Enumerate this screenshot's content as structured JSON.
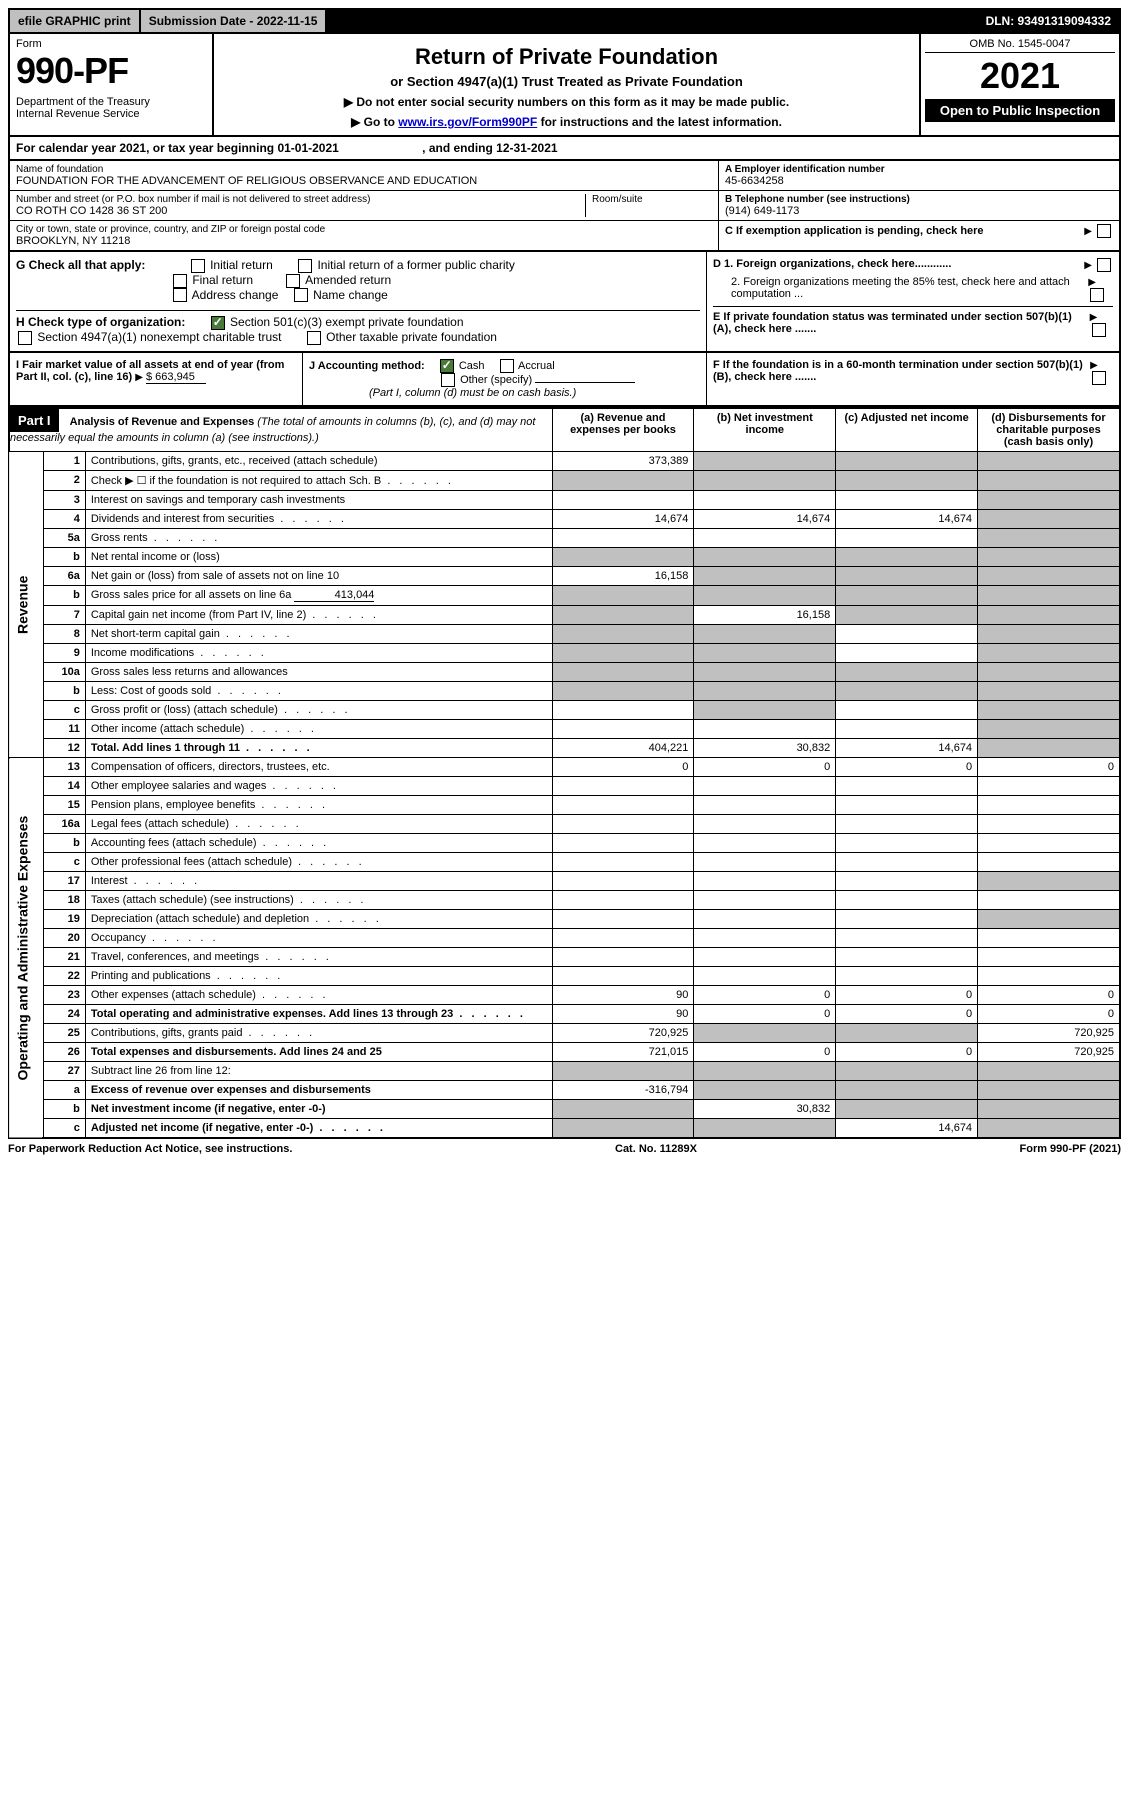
{
  "topbar": {
    "efile": "efile GRAPHIC print",
    "submission": "Submission Date - 2022-11-15",
    "dln": "DLN: 93491319094332"
  },
  "header": {
    "form_label": "Form",
    "form_number": "990-PF",
    "dept": "Department of the Treasury\nInternal Revenue Service",
    "title": "Return of Private Foundation",
    "subtitle": "or Section 4947(a)(1) Trust Treated as Private Foundation",
    "note1": "▶ Do not enter social security numbers on this form as it may be made public.",
    "note2_pre": "▶ Go to ",
    "note2_link": "www.irs.gov/Form990PF",
    "note2_post": " for instructions and the latest information.",
    "omb": "OMB No. 1545-0047",
    "year": "2021",
    "open": "Open to Public Inspection"
  },
  "calendar": "For calendar year 2021, or tax year beginning 01-01-2021                         , and ending 12-31-2021",
  "info": {
    "name_label": "Name of foundation",
    "name": "FOUNDATION FOR THE ADVANCEMENT OF RELIGIOUS OBSERVANCE AND EDUCATION",
    "street_label": "Number and street (or P.O. box number if mail is not delivered to street address)",
    "street": "CO ROTH CO 1428 36 ST 200",
    "room_label": "Room/suite",
    "city_label": "City or town, state or province, country, and ZIP or foreign postal code",
    "city": "BROOKLYN, NY  11218",
    "ein_label": "A Employer identification number",
    "ein": "45-6634258",
    "phone_label": "B Telephone number (see instructions)",
    "phone": "(914) 649-1173",
    "c_label": "C If exemption application is pending, check here"
  },
  "checks": {
    "g_label": "G Check all that apply:",
    "g_opts": [
      "Initial return",
      "Initial return of a former public charity",
      "Final return",
      "Amended return",
      "Address change",
      "Name change"
    ],
    "h_label": "H Check type of organization:",
    "h_501c3": "Section 501(c)(3) exempt private foundation",
    "h_4947": "Section 4947(a)(1) nonexempt charitable trust",
    "h_other": "Other taxable private foundation",
    "i_label": "I Fair market value of all assets at end of year (from Part II, col. (c), line 16)",
    "i_value": "$  663,945",
    "j_label": "J Accounting method:",
    "j_cash": "Cash",
    "j_accrual": "Accrual",
    "j_other": "Other (specify)",
    "j_note": "(Part I, column (d) must be on cash basis.)",
    "d1": "D 1. Foreign organizations, check here............",
    "d2": "2. Foreign organizations meeting the 85% test, check here and attach computation ...",
    "e_label": "E  If private foundation status was terminated under section 507(b)(1)(A), check here .......",
    "f_label": "F  If the foundation is in a 60-month termination under section 507(b)(1)(B), check here .......",
    "arrow": "▶"
  },
  "part1": {
    "label": "Part I",
    "title": "Analysis of Revenue and Expenses",
    "title_note": "(The total of amounts in columns (b), (c), and (d) may not necessarily equal the amounts in column (a) (see instructions).)",
    "col_a": "(a)   Revenue and expenses per books",
    "col_b": "(b)   Net investment income",
    "col_c": "(c)   Adjusted net income",
    "col_d": "(d)   Disbursements for charitable purposes (cash basis only)",
    "side_revenue": "Revenue",
    "side_expenses": "Operating and Administrative Expenses"
  },
  "rows": [
    {
      "n": "1",
      "desc": "Contributions, gifts, grants, etc., received (attach schedule)",
      "a": "373,389",
      "b": "",
      "c": "",
      "d": "",
      "b_shade": true,
      "c_shade": true,
      "d_shade": true
    },
    {
      "n": "2",
      "desc": "Check ▶ ☐ if the foundation is not required to attach Sch. B",
      "dots": true,
      "a": "",
      "b": "",
      "c": "",
      "d": "",
      "a_shade": true,
      "b_shade": true,
      "c_shade": true,
      "d_shade": true
    },
    {
      "n": "3",
      "desc": "Interest on savings and temporary cash investments",
      "a": "",
      "b": "",
      "c": "",
      "d": "",
      "d_shade": true
    },
    {
      "n": "4",
      "desc": "Dividends and interest from securities",
      "dots": true,
      "a": "14,674",
      "b": "14,674",
      "c": "14,674",
      "d": "",
      "d_shade": true
    },
    {
      "n": "5a",
      "desc": "Gross rents",
      "dots": true,
      "a": "",
      "b": "",
      "c": "",
      "d": "",
      "d_shade": true
    },
    {
      "n": "b",
      "desc": "Net rental income or (loss)",
      "inset": true,
      "a": "",
      "b": "",
      "c": "",
      "d": "",
      "a_shade": true,
      "b_shade": true,
      "c_shade": true,
      "d_shade": true
    },
    {
      "n": "6a",
      "desc": "Net gain or (loss) from sale of assets not on line 10",
      "a": "16,158",
      "b": "",
      "c": "",
      "d": "",
      "b_shade": true,
      "c_shade": true,
      "d_shade": true
    },
    {
      "n": "b",
      "desc": "Gross sales price for all assets on line 6a",
      "inset_val": "413,044",
      "a": "",
      "b": "",
      "c": "",
      "d": "",
      "a_shade": true,
      "b_shade": true,
      "c_shade": true,
      "d_shade": true
    },
    {
      "n": "7",
      "desc": "Capital gain net income (from Part IV, line 2)",
      "dots": true,
      "a": "",
      "b": "16,158",
      "c": "",
      "d": "",
      "a_shade": true,
      "c_shade": true,
      "d_shade": true
    },
    {
      "n": "8",
      "desc": "Net short-term capital gain",
      "dots": true,
      "a": "",
      "b": "",
      "c": "",
      "d": "",
      "a_shade": true,
      "b_shade": true,
      "d_shade": true
    },
    {
      "n": "9",
      "desc": "Income modifications",
      "dots": true,
      "a": "",
      "b": "",
      "c": "",
      "d": "",
      "a_shade": true,
      "b_shade": true,
      "d_shade": true
    },
    {
      "n": "10a",
      "desc": "Gross sales less returns and allowances",
      "inset": true,
      "a": "",
      "b": "",
      "c": "",
      "d": "",
      "a_shade": true,
      "b_shade": true,
      "c_shade": true,
      "d_shade": true
    },
    {
      "n": "b",
      "desc": "Less: Cost of goods sold",
      "dots": true,
      "inset": true,
      "a": "",
      "b": "",
      "c": "",
      "d": "",
      "a_shade": true,
      "b_shade": true,
      "c_shade": true,
      "d_shade": true
    },
    {
      "n": "c",
      "desc": "Gross profit or (loss) (attach schedule)",
      "dots": true,
      "a": "",
      "b": "",
      "c": "",
      "d": "",
      "b_shade": true,
      "d_shade": true
    },
    {
      "n": "11",
      "desc": "Other income (attach schedule)",
      "dots": true,
      "a": "",
      "b": "",
      "c": "",
      "d": "",
      "d_shade": true
    },
    {
      "n": "12",
      "desc": "Total. Add lines 1 through 11",
      "dots": true,
      "bold": true,
      "a": "404,221",
      "b": "30,832",
      "c": "14,674",
      "d": "",
      "d_shade": true
    },
    {
      "n": "13",
      "desc": "Compensation of officers, directors, trustees, etc.",
      "a": "0",
      "b": "0",
      "c": "0",
      "d": "0"
    },
    {
      "n": "14",
      "desc": "Other employee salaries and wages",
      "dots": true,
      "a": "",
      "b": "",
      "c": "",
      "d": ""
    },
    {
      "n": "15",
      "desc": "Pension plans, employee benefits",
      "dots": true,
      "a": "",
      "b": "",
      "c": "",
      "d": ""
    },
    {
      "n": "16a",
      "desc": "Legal fees (attach schedule)",
      "dots": true,
      "a": "",
      "b": "",
      "c": "",
      "d": ""
    },
    {
      "n": "b",
      "desc": "Accounting fees (attach schedule)",
      "dots": true,
      "a": "",
      "b": "",
      "c": "",
      "d": ""
    },
    {
      "n": "c",
      "desc": "Other professional fees (attach schedule)",
      "dots": true,
      "a": "",
      "b": "",
      "c": "",
      "d": ""
    },
    {
      "n": "17",
      "desc": "Interest",
      "dots": true,
      "a": "",
      "b": "",
      "c": "",
      "d": "",
      "d_shade": true
    },
    {
      "n": "18",
      "desc": "Taxes (attach schedule) (see instructions)",
      "dots": true,
      "a": "",
      "b": "",
      "c": "",
      "d": ""
    },
    {
      "n": "19",
      "desc": "Depreciation (attach schedule) and depletion",
      "dots": true,
      "a": "",
      "b": "",
      "c": "",
      "d": "",
      "d_shade": true
    },
    {
      "n": "20",
      "desc": "Occupancy",
      "dots": true,
      "a": "",
      "b": "",
      "c": "",
      "d": ""
    },
    {
      "n": "21",
      "desc": "Travel, conferences, and meetings",
      "dots": true,
      "a": "",
      "b": "",
      "c": "",
      "d": ""
    },
    {
      "n": "22",
      "desc": "Printing and publications",
      "dots": true,
      "a": "",
      "b": "",
      "c": "",
      "d": ""
    },
    {
      "n": "23",
      "desc": "Other expenses (attach schedule)",
      "dots": true,
      "a": "90",
      "b": "0",
      "c": "0",
      "d": "0"
    },
    {
      "n": "24",
      "desc": "Total operating and administrative expenses. Add lines 13 through 23",
      "dots": true,
      "bold": true,
      "a": "90",
      "b": "0",
      "c": "0",
      "d": "0"
    },
    {
      "n": "25",
      "desc": "Contributions, gifts, grants paid",
      "dots": true,
      "a": "720,925",
      "b": "",
      "c": "",
      "d": "720,925",
      "b_shade": true,
      "c_shade": true
    },
    {
      "n": "26",
      "desc": "Total expenses and disbursements. Add lines 24 and 25",
      "bold": true,
      "a": "721,015",
      "b": "0",
      "c": "0",
      "d": "720,925"
    },
    {
      "n": "27",
      "desc": "Subtract line 26 from line 12:",
      "a": "",
      "b": "",
      "c": "",
      "d": "",
      "a_shade": true,
      "b_shade": true,
      "c_shade": true,
      "d_shade": true
    },
    {
      "n": "a",
      "desc": "Excess of revenue over expenses and disbursements",
      "bold": true,
      "a": "-316,794",
      "b": "",
      "c": "",
      "d": "",
      "b_shade": true,
      "c_shade": true,
      "d_shade": true
    },
    {
      "n": "b",
      "desc": "Net investment income (if negative, enter -0-)",
      "bold": true,
      "a": "",
      "b": "30,832",
      "c": "",
      "d": "",
      "a_shade": true,
      "c_shade": true,
      "d_shade": true
    },
    {
      "n": "c",
      "desc": "Adjusted net income (if negative, enter -0-)",
      "dots": true,
      "bold": true,
      "a": "",
      "b": "",
      "c": "14,674",
      "d": "",
      "a_shade": true,
      "b_shade": true,
      "d_shade": true
    }
  ],
  "footer": {
    "left": "For Paperwork Reduction Act Notice, see instructions.",
    "center": "Cat. No. 11289X",
    "right": "Form 990-PF (2021)"
  },
  "colors": {
    "shaded": "#c0c0c0",
    "black": "#000000",
    "link": "#0000cc",
    "check_green": "#4a7a3a"
  }
}
